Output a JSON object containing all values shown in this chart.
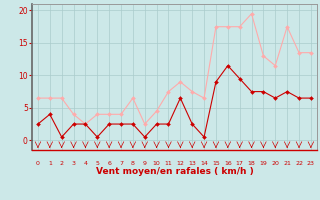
{
  "x": [
    0,
    1,
    2,
    3,
    4,
    5,
    6,
    7,
    8,
    9,
    10,
    11,
    12,
    13,
    14,
    15,
    16,
    17,
    18,
    19,
    20,
    21,
    22,
    23
  ],
  "rafales": [
    6.5,
    6.5,
    6.5,
    4.0,
    2.5,
    4.0,
    4.0,
    4.0,
    6.5,
    2.5,
    4.5,
    7.5,
    9.0,
    7.5,
    6.5,
    17.5,
    17.5,
    17.5,
    19.5,
    13.0,
    11.5,
    17.5,
    13.5,
    13.5
  ],
  "vent_moyen": [
    2.5,
    4.0,
    0.5,
    2.5,
    2.5,
    0.5,
    2.5,
    2.5,
    2.5,
    0.5,
    2.5,
    2.5,
    6.5,
    2.5,
    0.5,
    9.0,
    11.5,
    9.5,
    7.5,
    7.5,
    6.5,
    7.5,
    6.5,
    6.5
  ],
  "bg_color": "#cce8e8",
  "grid_color": "#aacccc",
  "rafales_color": "#ffaaaa",
  "vent_color": "#cc0000",
  "xlabel": "Vent moyen/en rafales ( km/h )",
  "ylim": [
    -1.5,
    21
  ],
  "yticks": [
    0,
    5,
    10,
    15,
    20
  ],
  "xlabel_color": "#cc0000",
  "tick_color": "#cc0000",
  "axis_color": "#999999"
}
